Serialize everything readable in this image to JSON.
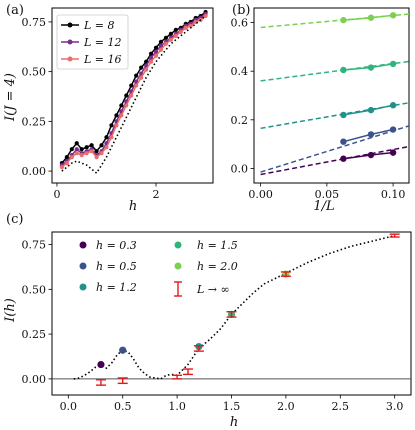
{
  "chart_data": [
    {
      "panel": "(a)",
      "type": "line",
      "xlabel": "h",
      "ylabel": "I(J = 4)",
      "xlim": [
        -0.1,
        3.15
      ],
      "ylim": [
        -0.06,
        0.82
      ],
      "xticks": [
        0,
        2
      ],
      "xtick_labels": [
        "0",
        "2"
      ],
      "yticks": [
        0.0,
        0.25,
        0.5,
        0.75
      ],
      "ytick_labels": [
        "0.00",
        "0.25",
        "0.50",
        "0.75"
      ],
      "legend_position": "top-left",
      "series": [
        {
          "name": "L = 8",
          "color": "#000000",
          "x": [
            0.1,
            0.2,
            0.3,
            0.4,
            0.5,
            0.6,
            0.7,
            0.8,
            0.9,
            1.0,
            1.1,
            1.2,
            1.3,
            1.4,
            1.5,
            1.6,
            1.7,
            1.8,
            1.9,
            2.0,
            2.1,
            2.2,
            2.3,
            2.4,
            2.5,
            2.6,
            2.7,
            2.8,
            2.9,
            3.0
          ],
          "y": [
            0.04,
            0.07,
            0.11,
            0.14,
            0.11,
            0.12,
            0.13,
            0.1,
            0.13,
            0.17,
            0.23,
            0.28,
            0.33,
            0.38,
            0.43,
            0.48,
            0.52,
            0.55,
            0.59,
            0.62,
            0.65,
            0.67,
            0.69,
            0.71,
            0.72,
            0.74,
            0.75,
            0.77,
            0.78,
            0.8
          ]
        },
        {
          "name": "L = 12",
          "color": "#7b2d8e",
          "x": [
            0.1,
            0.2,
            0.3,
            0.4,
            0.5,
            0.6,
            0.7,
            0.8,
            0.9,
            1.0,
            1.1,
            1.2,
            1.3,
            1.4,
            1.5,
            1.6,
            1.7,
            1.8,
            1.9,
            2.0,
            2.1,
            2.2,
            2.3,
            2.4,
            2.5,
            2.6,
            2.7,
            2.8,
            2.9,
            3.0
          ],
          "y": [
            0.03,
            0.05,
            0.08,
            0.11,
            0.09,
            0.1,
            0.11,
            0.08,
            0.1,
            0.14,
            0.19,
            0.25,
            0.3,
            0.35,
            0.4,
            0.45,
            0.49,
            0.53,
            0.57,
            0.6,
            0.63,
            0.65,
            0.67,
            0.69,
            0.71,
            0.73,
            0.74,
            0.76,
            0.77,
            0.79
          ]
        },
        {
          "name": "L = 16",
          "color": "#ec6b6b",
          "x": [
            0.1,
            0.2,
            0.3,
            0.4,
            0.5,
            0.6,
            0.7,
            0.8,
            0.9,
            1.0,
            1.1,
            1.2,
            1.3,
            1.4,
            1.5,
            1.6,
            1.7,
            1.8,
            1.9,
            2.0,
            2.1,
            2.2,
            2.3,
            2.4,
            2.5,
            2.6,
            2.7,
            2.8,
            2.9,
            3.0
          ],
          "y": [
            0.02,
            0.04,
            0.07,
            0.09,
            0.08,
            0.09,
            0.1,
            0.07,
            0.09,
            0.12,
            0.17,
            0.23,
            0.28,
            0.33,
            0.38,
            0.43,
            0.47,
            0.51,
            0.55,
            0.58,
            0.61,
            0.64,
            0.66,
            0.68,
            0.7,
            0.72,
            0.73,
            0.75,
            0.76,
            0.78
          ]
        },
        {
          "name": "",
          "style": "dotted",
          "color": "#000000",
          "x": [
            0.1,
            0.2,
            0.3,
            0.4,
            0.5,
            0.6,
            0.7,
            0.8,
            0.9,
            1.0,
            1.1,
            1.2,
            1.3,
            1.4,
            1.5,
            1.6,
            1.7,
            1.8,
            1.9,
            2.0,
            2.1,
            2.2,
            2.3,
            2.4,
            2.5,
            2.6,
            2.7,
            2.8,
            2.9,
            3.0
          ],
          "y": [
            0.0,
            0.02,
            0.04,
            0.05,
            0.04,
            0.03,
            0.01,
            -0.01,
            0.03,
            0.07,
            0.12,
            0.17,
            0.22,
            0.27,
            0.32,
            0.37,
            0.42,
            0.47,
            0.51,
            0.55,
            0.58,
            0.61,
            0.64,
            0.66,
            0.68,
            0.7,
            0.72,
            0.74,
            0.76,
            0.78
          ]
        }
      ]
    },
    {
      "panel": "(b)",
      "type": "scatter",
      "xlabel": "1/L",
      "ylabel": "",
      "xlim": [
        -0.005,
        0.112
      ],
      "ylim": [
        -0.06,
        0.66
      ],
      "xticks": [
        0.0,
        0.05,
        0.1
      ],
      "xtick_labels": [
        "0.00",
        "0.05",
        "0.10"
      ],
      "yticks": [
        0.0,
        0.2,
        0.4,
        0.6
      ],
      "ytick_labels": [
        "0.0",
        "0.2",
        "0.4",
        "0.6"
      ],
      "series": [
        {
          "color": "#440154",
          "x": [
            0.0625,
            0.0833,
            0.1
          ],
          "y": [
            0.04,
            0.055,
            0.065
          ],
          "fit": [
            -0.025,
            0.09
          ]
        },
        {
          "color": "#3b528b",
          "x": [
            0.0625,
            0.0833,
            0.1
          ],
          "y": [
            0.11,
            0.14,
            0.16
          ],
          "fit": [
            -0.015,
            0.175
          ]
        },
        {
          "color": "#21918c",
          "x": [
            0.0625,
            0.0833,
            0.1
          ],
          "y": [
            0.22,
            0.24,
            0.26
          ],
          "fit": [
            0.165,
            0.27
          ]
        },
        {
          "color": "#2fb47c",
          "x": [
            0.0625,
            0.0833,
            0.1
          ],
          "y": [
            0.405,
            0.415,
            0.43
          ],
          "fit": [
            0.36,
            0.44
          ]
        },
        {
          "color": "#7ad151",
          "x": [
            0.0625,
            0.0833,
            0.1
          ],
          "y": [
            0.61,
            0.62,
            0.63
          ],
          "fit": [
            0.58,
            0.635
          ]
        }
      ]
    },
    {
      "panel": "(c)",
      "type": "scatter",
      "xlabel": "h",
      "ylabel": "I(h)",
      "xlim": [
        -0.15,
        3.15
      ],
      "ylim": [
        -0.09,
        0.82
      ],
      "xticks": [
        0.0,
        0.5,
        1.0,
        1.5,
        2.0,
        2.5,
        3.0
      ],
      "xtick_labels": [
        "0.0",
        "0.5",
        "1.0",
        "1.5",
        "2.0",
        "2.5",
        "3.0"
      ],
      "yticks": [
        0.0,
        0.25,
        0.5,
        0.75
      ],
      "ytick_labels": [
        "0.00",
        "0.25",
        "0.50",
        "0.75"
      ],
      "legend_position": "top-left",
      "legend": [
        {
          "label": "h = 0.3",
          "color": "#440154",
          "marker": "dot"
        },
        {
          "label": "h = 0.5",
          "color": "#3b528b",
          "marker": "dot"
        },
        {
          "label": "h = 1.2",
          "color": "#21918c",
          "marker": "dot"
        },
        {
          "label": "h = 1.5",
          "color": "#2fb47c",
          "marker": "dot"
        },
        {
          "label": "h = 2.0",
          "color": "#7ad151",
          "marker": "dot"
        },
        {
          "label": "L → ∞",
          "color": "#e31a1c",
          "marker": "errorbar"
        }
      ],
      "points": [
        {
          "x": 0.3,
          "y": 0.08,
          "color": "#440154"
        },
        {
          "x": 0.5,
          "y": 0.16,
          "color": "#3b528b"
        },
        {
          "x": 1.2,
          "y": 0.18,
          "color": "#21918c"
        },
        {
          "x": 1.5,
          "y": 0.36,
          "color": "#2fb47c"
        },
        {
          "x": 2.0,
          "y": 0.585,
          "color": "#7ad151"
        }
      ],
      "extrapolated": {
        "x": [
          0.3,
          0.5,
          1.0,
          1.1,
          1.2,
          1.5,
          2.0,
          3.0
        ],
        "y": [
          -0.02,
          -0.01,
          0.01,
          0.04,
          0.17,
          0.36,
          0.585,
          0.8
        ],
        "err": [
          0.015,
          0.015,
          0.01,
          0.015,
          0.015,
          0.015,
          0.012,
          0.008
        ]
      },
      "dotted_curve": {
        "x": [
          0.05,
          0.1,
          0.15,
          0.2,
          0.25,
          0.3,
          0.35,
          0.4,
          0.45,
          0.5,
          0.55,
          0.6,
          0.65,
          0.7,
          0.75,
          0.8,
          0.85,
          0.9,
          0.95,
          1.0,
          1.1,
          1.2,
          1.3,
          1.4,
          1.5,
          1.6,
          1.7,
          1.8,
          1.9,
          2.0,
          2.2,
          2.4,
          2.6,
          2.8,
          3.0
        ],
        "y": [
          0.0,
          0.005,
          0.02,
          0.04,
          0.065,
          0.075,
          0.06,
          0.09,
          0.135,
          0.16,
          0.15,
          0.11,
          0.06,
          0.03,
          0.01,
          0.005,
          0.0,
          0.02,
          0.025,
          0.02,
          0.08,
          0.17,
          0.22,
          0.28,
          0.36,
          0.42,
          0.48,
          0.53,
          0.56,
          0.59,
          0.65,
          0.7,
          0.74,
          0.77,
          0.8
        ]
      },
      "hline": 0.0
    }
  ],
  "legend_a_labels": [
    "L = 8",
    "L = 12",
    "L = 16"
  ],
  "legend_c_labels": [
    "h = 0.3",
    "h = 0.5",
    "h = 1.2",
    "h = 1.5",
    "h = 2.0",
    "L → ∞"
  ]
}
